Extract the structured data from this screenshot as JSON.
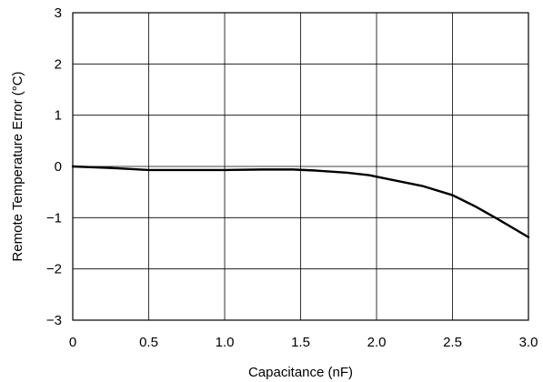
{
  "chart_data": {
    "type": "line",
    "title": "",
    "xlabel": "Capacitance (nF)",
    "ylabel": "Remote Temperature Error (°C)",
    "xlim": [
      0,
      3.0
    ],
    "ylim": [
      -3,
      3
    ],
    "x_ticks": [
      0,
      0.5,
      1.0,
      1.5,
      2.0,
      2.5,
      3.0
    ],
    "x_tick_labels": [
      "0",
      "0.5",
      "1.0",
      "1.5",
      "2.0",
      "2.5",
      "3.0"
    ],
    "y_ticks": [
      3,
      2,
      1,
      0,
      -1,
      -2,
      -3
    ],
    "y_tick_labels": [
      "3",
      "2",
      "1",
      "0",
      "−1",
      "−2",
      "−3"
    ],
    "grid": true,
    "legend": "none",
    "series": [
      {
        "x": [
          0,
          0.25,
          0.5,
          0.75,
          1.0,
          1.25,
          1.45,
          1.6,
          1.8,
          1.95,
          2.1,
          2.3,
          2.5,
          2.65,
          2.8,
          3.0
        ],
        "y": [
          0,
          -0.03,
          -0.07,
          -0.07,
          -0.07,
          -0.06,
          -0.06,
          -0.08,
          -0.12,
          -0.17,
          -0.26,
          -0.38,
          -0.56,
          -0.78,
          -1.03,
          -1.38
        ]
      }
    ]
  }
}
